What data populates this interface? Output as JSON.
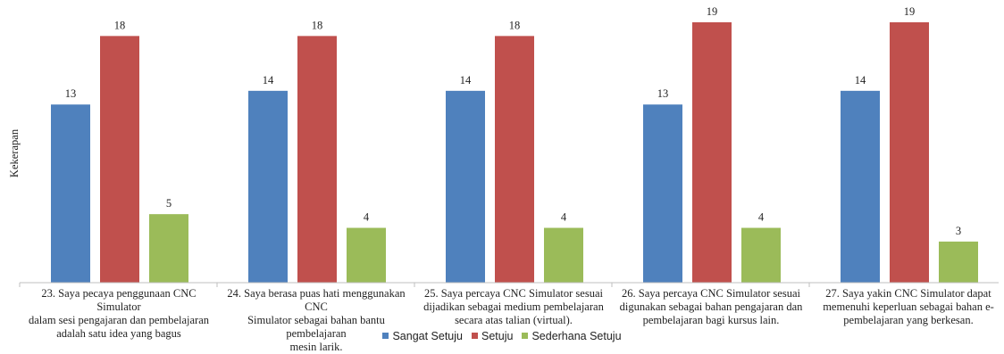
{
  "chart_data": {
    "type": "bar",
    "ylabel": "Kekerapan",
    "xlabel": "",
    "title": "",
    "ylim": [
      0,
      19
    ],
    "grid": false,
    "legend_position": "bottom",
    "categories": [
      "23. Saya pecaya penggunaan CNC Simulator dalam sesi pengajaran dan pembelajaran adalah satu idea yang bagus",
      "24. Saya berasa puas hati menggunakan CNC Simulator sebagai bahan bantu pembelajaran mesin larik.",
      "25. Saya percaya CNC Simulator sesuai dijadikan sebagai medium pembelajaran secara atas talian (virtual).",
      "26. Saya percaya CNC Simulator sesuai digunakan sebagai bahan pengajaran dan pembelajaran bagi kursus lain.",
      "27. Saya yakin CNC Simulator dapat memenuhi keperluan sebagai bahan e-pembelajaran yang berkesan."
    ],
    "category_lines": [
      [
        "23. Saya pecaya penggunaan CNC Simulator",
        "dalam sesi pengajaran dan pembelajaran",
        "adalah satu idea yang bagus"
      ],
      [
        "24. Saya berasa puas hati menggunakan CNC",
        "Simulator sebagai bahan bantu pembelajaran",
        "mesin larik."
      ],
      [
        "25. Saya percaya CNC Simulator sesuai",
        "dijadikan sebagai medium pembelajaran",
        "secara atas talian (virtual)."
      ],
      [
        "26. Saya percaya CNC Simulator sesuai",
        "digunakan sebagai bahan pengajaran dan",
        "pembelajaran bagi kursus lain."
      ],
      [
        "27. Saya yakin CNC Simulator dapat",
        "memenuhi keperluan sebagai bahan e-",
        "pembelajaran yang berkesan."
      ]
    ],
    "series": [
      {
        "name": "Sangat Setuju",
        "color": "#4f81bd",
        "values": [
          13,
          14,
          14,
          13,
          14
        ]
      },
      {
        "name": "Setuju",
        "color": "#c0504d",
        "values": [
          18,
          18,
          18,
          19,
          19
        ]
      },
      {
        "name": "Sederhana Setuju",
        "color": "#9bbb59",
        "values": [
          5,
          4,
          4,
          4,
          3
        ]
      }
    ]
  }
}
